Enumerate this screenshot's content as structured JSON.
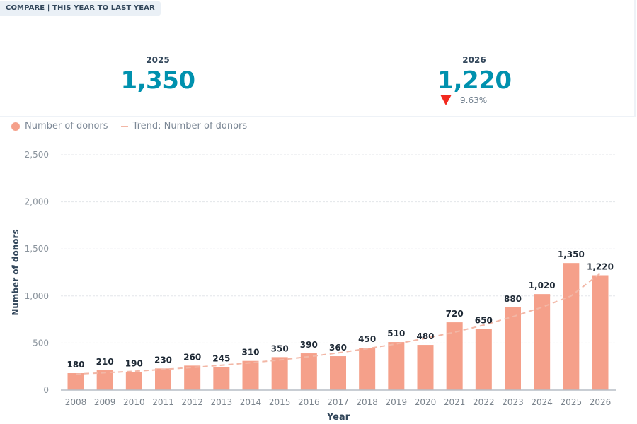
{
  "header": {
    "compare_label": "COMPARE | THIS YEAR TO LAST YEAR"
  },
  "kpis": [
    {
      "year": "2025",
      "value": "1,350"
    },
    {
      "year": "2026",
      "value": "1,220",
      "change": "9.63%",
      "direction": "down"
    }
  ],
  "colors": {
    "kpi_value": "#0091ae",
    "bar": "#f5a08a",
    "trend": "#f2b7a6",
    "down": "#f2291f"
  },
  "legend": {
    "series_label": "Number of donors",
    "trend_label": "Trend: Number of donors"
  },
  "chart_data": {
    "type": "bar",
    "title": "",
    "xlabel": "Year",
    "ylabel": "Number of donors",
    "ylim": [
      0,
      2500
    ],
    "yticks": [
      0,
      500,
      1000,
      1500,
      2000,
      2500
    ],
    "ytick_labels": [
      "0",
      "500",
      "1,000",
      "1,500",
      "2,000",
      "2,500"
    ],
    "grid": true,
    "legend_position": "top-left",
    "categories": [
      "2008",
      "2009",
      "2010",
      "2011",
      "2012",
      "2013",
      "2014",
      "2015",
      "2016",
      "2017",
      "2018",
      "2019",
      "2020",
      "2021",
      "2022",
      "2023",
      "2024",
      "2025",
      "2026"
    ],
    "series": [
      {
        "name": "Number of donors",
        "type": "bar",
        "values": [
          180,
          210,
          190,
          230,
          260,
          245,
          310,
          350,
          390,
          360,
          450,
          510,
          480,
          720,
          650,
          880,
          1020,
          1350,
          1220
        ],
        "labels": [
          "180",
          "210",
          "190",
          "230",
          "260",
          "245",
          "310",
          "350",
          "390",
          "360",
          "450",
          "510",
          "480",
          "720",
          "650",
          "880",
          "1,020",
          "1,350",
          "1,220"
        ]
      },
      {
        "name": "Trend: Number of donors",
        "type": "line",
        "style": "dashed",
        "values": [
          170,
          185,
          200,
          220,
          240,
          265,
          290,
          320,
          355,
          395,
          440,
          490,
          550,
          615,
          690,
          780,
          880,
          1000,
          1240
        ]
      }
    ]
  }
}
